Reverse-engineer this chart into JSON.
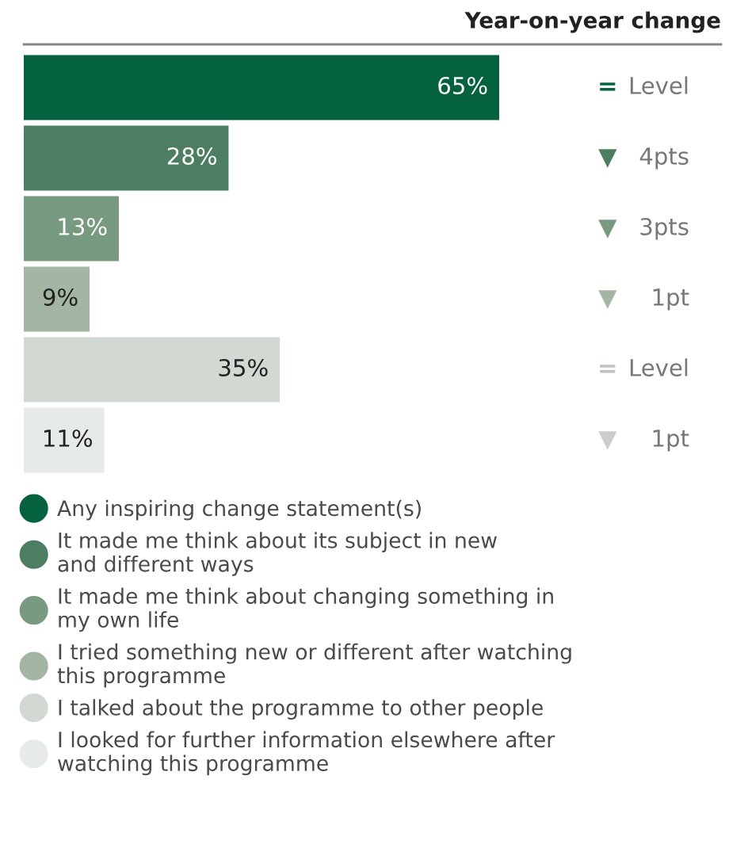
{
  "chart_data": {
    "type": "bar",
    "orientation": "horizontal",
    "stacked": true,
    "title": "Year-on-year change",
    "categories": [
      null,
      null,
      null,
      null,
      null,
      null
    ],
    "series": [
      {
        "name": "Any inspiring change statement(s)",
        "color": "#04623f",
        "values": [
          65,
          null,
          null,
          null,
          null,
          null
        ],
        "value_labels": [
          "65%",
          null,
          null,
          null,
          null,
          null
        ]
      },
      {
        "name": "It made me think about its subject in new\nand different ways",
        "color": "#4e7e61",
        "values": [
          null,
          28,
          null,
          null,
          null,
          null
        ],
        "value_labels": [
          null,
          "28%",
          null,
          null,
          null,
          null
        ]
      },
      {
        "name": "It made me think about changing something in\nmy own life",
        "color": "#789a80",
        "values": [
          null,
          null,
          13,
          null,
          null,
          null
        ],
        "value_labels": [
          null,
          null,
          "13%",
          null,
          null,
          null
        ]
      },
      {
        "name": "I tried something new or different after watching\nthis programme",
        "color": "#a3b5a3",
        "values": [
          null,
          null,
          null,
          9,
          null,
          null
        ],
        "value_labels": [
          null,
          null,
          null,
          "9%",
          null,
          null
        ]
      },
      {
        "name": "I talked about the programme to other people",
        "color": "#d2d9d3",
        "values": [
          null,
          null,
          null,
          null,
          35,
          null
        ],
        "value_labels": [
          null,
          null,
          null,
          null,
          "35%",
          null
        ]
      },
      {
        "name": "I looked for further information elsewhere after\nwatching this programme",
        "color": "#e7ebe7",
        "values": [
          null,
          null,
          null,
          null,
          null,
          11
        ],
        "value_labels": [
          null,
          null,
          null,
          null,
          null,
          "11%"
        ]
      }
    ],
    "legend": "bottom",
    "annotations": [
      "= Level",
      "▼ 4pts",
      "▼ 3pts",
      "▼ 1pt",
      "= Level",
      "▼ 1pt"
    ]
  }
}
